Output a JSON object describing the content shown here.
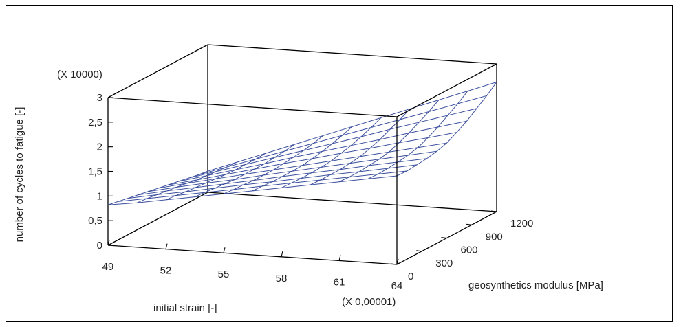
{
  "chart_data": {
    "type": "surface",
    "x": {
      "label": "initial strain [-]",
      "multiplier": "(X 0,00001)",
      "ticks": [
        "49",
        "52",
        "55",
        "58",
        "61",
        "64"
      ],
      "range": [
        49,
        64
      ]
    },
    "y": {
      "label": "geosynthetics modulus [MPa]",
      "ticks": [
        "0",
        "300",
        "600",
        "900",
        "1200"
      ],
      "range": [
        0,
        1200
      ]
    },
    "z": {
      "label": "number of cycles to fatigue [-]",
      "multiplier": "(X 10000)",
      "ticks": [
        "0",
        "0,5",
        "1",
        "1,5",
        "2",
        "2,5",
        "3"
      ],
      "range": [
        0,
        3
      ]
    },
    "grid_x": [
      49,
      50.5,
      52,
      53.5,
      55,
      56.5,
      58,
      59.5,
      61,
      62.5,
      64
    ],
    "grid_y": [
      0,
      120,
      240,
      360,
      480,
      600,
      720,
      840,
      960,
      1080,
      1200
    ],
    "z_values": [
      [
        0.82,
        0.9,
        1.0,
        1.1,
        1.2,
        1.3,
        1.4,
        1.5,
        1.6,
        1.7,
        1.8
      ],
      [
        0.78,
        0.88,
        0.98,
        1.08,
        1.18,
        1.29,
        1.39,
        1.49,
        1.59,
        1.69,
        1.79
      ],
      [
        0.74,
        0.85,
        0.95,
        1.06,
        1.17,
        1.27,
        1.38,
        1.49,
        1.59,
        1.7,
        1.81
      ],
      [
        0.7,
        0.82,
        0.93,
        1.04,
        1.15,
        1.27,
        1.38,
        1.49,
        1.61,
        1.72,
        1.83
      ],
      [
        0.66,
        0.79,
        0.91,
        1.02,
        1.15,
        1.27,
        1.39,
        1.51,
        1.63,
        1.75,
        1.87
      ],
      [
        0.62,
        0.76,
        0.89,
        1.02,
        1.15,
        1.28,
        1.41,
        1.54,
        1.67,
        1.8,
        1.93
      ],
      [
        0.58,
        0.72,
        0.87,
        1.02,
        1.17,
        1.31,
        1.46,
        1.6,
        1.75,
        1.89,
        2.04
      ],
      [
        0.54,
        0.7,
        0.86,
        1.02,
        1.19,
        1.35,
        1.51,
        1.67,
        1.84,
        2.0,
        2.16
      ],
      [
        0.5,
        0.68,
        0.86,
        1.04,
        1.22,
        1.4,
        1.58,
        1.77,
        1.95,
        2.13,
        2.31
      ],
      [
        0.46,
        0.66,
        0.86,
        1.06,
        1.26,
        1.46,
        1.66,
        1.86,
        2.06,
        2.26,
        2.46
      ],
      [
        0.43,
        0.65,
        0.87,
        1.09,
        1.31,
        1.53,
        1.75,
        1.97,
        2.19,
        2.41,
        2.63
      ]
    ],
    "surface_color": "#3b4f9e",
    "grid": false
  }
}
